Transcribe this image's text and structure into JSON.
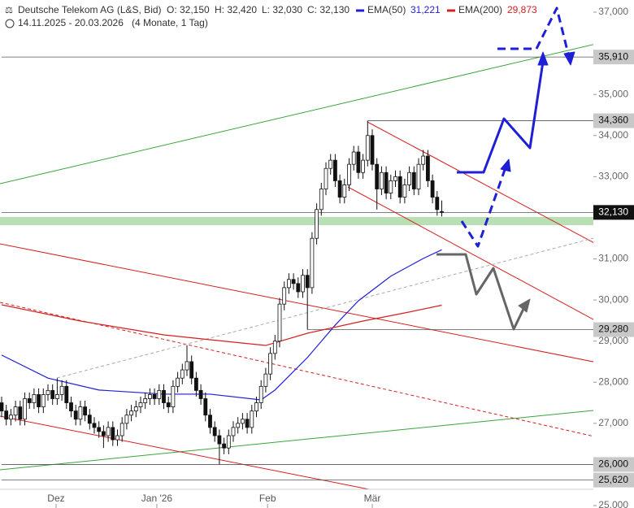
{
  "chart_data": {
    "type": "candlestick",
    "title": "Deutsche Telekom AG (L&S, Bid)",
    "ohlc_labels": [
      "O: 32,150",
      "H: 32,420",
      "L: 32,030",
      "C: 32,130"
    ],
    "period": "14.11.2025 - 20.03.2026",
    "period_note": "(4 Monate, 1 Tag)",
    "up_color": "#ffffff",
    "down_color": "#111111",
    "candles": [
      [
        27500,
        27650,
        27150,
        27300
      ],
      [
        27300,
        27450,
        26950,
        27100
      ],
      [
        27100,
        27350,
        26950,
        27200
      ],
      [
        27200,
        27550,
        27050,
        27400
      ],
      [
        27400,
        27550,
        26950,
        27100
      ],
      [
        27100,
        27750,
        26950,
        27600
      ],
      [
        27600,
        27750,
        27350,
        27500
      ],
      [
        27500,
        27850,
        27350,
        27700
      ],
      [
        27700,
        27850,
        27250,
        27400
      ],
      [
        27400,
        27850,
        27250,
        27700
      ],
      [
        27700,
        27950,
        27550,
        27800
      ],
      [
        27800,
        27950,
        27450,
        27600
      ],
      [
        27600,
        28100,
        27450,
        27700
      ],
      [
        27700,
        28050,
        27550,
        27900
      ],
      [
        27900,
        28050,
        27350,
        27500
      ],
      [
        27500,
        27650,
        27150,
        27300
      ],
      [
        27300,
        27450,
        26950,
        27100
      ],
      [
        27100,
        27550,
        26950,
        27400
      ],
      [
        27400,
        27550,
        27050,
        27200
      ],
      [
        27200,
        27350,
        26850,
        27000
      ],
      [
        27000,
        27150,
        26750,
        26900
      ],
      [
        26900,
        27050,
        26650,
        26800
      ],
      [
        26800,
        26950,
        26400,
        26700
      ],
      [
        26700,
        27050,
        26550,
        26900
      ],
      [
        26900,
        27050,
        26450,
        26600
      ],
      [
        26600,
        26850,
        26450,
        26700
      ],
      [
        26700,
        27150,
        26550,
        27000
      ],
      [
        27000,
        27350,
        26850,
        27200
      ],
      [
        27200,
        27450,
        27050,
        27300
      ],
      [
        27300,
        27550,
        27150,
        27400
      ],
      [
        27400,
        27650,
        27250,
        27500
      ],
      [
        27500,
        27750,
        27350,
        27600
      ],
      [
        27600,
        27850,
        27450,
        27700
      ],
      [
        27700,
        27850,
        27450,
        27600
      ],
      [
        27600,
        27950,
        27450,
        27800
      ],
      [
        27800,
        27950,
        27350,
        27500
      ],
      [
        27500,
        27650,
        27250,
        27400
      ],
      [
        27400,
        28050,
        27250,
        27900
      ],
      [
        27900,
        28250,
        27750,
        28100
      ],
      [
        28100,
        28450,
        27950,
        28300
      ],
      [
        28300,
        28900,
        28150,
        28500
      ],
      [
        28500,
        28650,
        27950,
        28100
      ],
      [
        28100,
        28250,
        27650,
        27800
      ],
      [
        27800,
        27950,
        27450,
        27600
      ],
      [
        27600,
        27750,
        27050,
        27200
      ],
      [
        27200,
        27350,
        26750,
        26900
      ],
      [
        26900,
        27050,
        26550,
        26700
      ],
      [
        26700,
        26850,
        26000,
        26500
      ],
      [
        26500,
        26650,
        26250,
        26400
      ],
      [
        26400,
        26850,
        26250,
        26700
      ],
      [
        26700,
        27050,
        26550,
        26900
      ],
      [
        26900,
        27150,
        26750,
        27000
      ],
      [
        27000,
        27250,
        26850,
        27100
      ],
      [
        27100,
        27250,
        26750,
        26900
      ],
      [
        26900,
        27450,
        26750,
        27300
      ],
      [
        27300,
        27650,
        27150,
        27500
      ],
      [
        27500,
        28050,
        27350,
        27900
      ],
      [
        27900,
        28350,
        27750,
        28200
      ],
      [
        28200,
        28850,
        28050,
        28700
      ],
      [
        28700,
        29150,
        28550,
        29000
      ],
      [
        29000,
        30050,
        28850,
        29900
      ],
      [
        29900,
        30450,
        29750,
        30300
      ],
      [
        30300,
        30650,
        30150,
        30500
      ],
      [
        30500,
        30650,
        30250,
        30400
      ],
      [
        30400,
        30550,
        30050,
        30200
      ],
      [
        30200,
        30750,
        30050,
        30600
      ],
      [
        30600,
        30750,
        29280,
        30300
      ],
      [
        30300,
        31650,
        30150,
        31500
      ],
      [
        31500,
        32350,
        31350,
        32200
      ],
      [
        32200,
        32850,
        32050,
        32700
      ],
      [
        32700,
        33350,
        32550,
        33200
      ],
      [
        33200,
        33550,
        33050,
        33400
      ],
      [
        33400,
        33550,
        32750,
        32900
      ],
      [
        32900,
        33050,
        32350,
        32500
      ],
      [
        32500,
        32950,
        32350,
        32800
      ],
      [
        32800,
        33450,
        32650,
        33300
      ],
      [
        33300,
        33750,
        33150,
        33600
      ],
      [
        33600,
        33750,
        32950,
        33100
      ],
      [
        33100,
        33550,
        32950,
        33400
      ],
      [
        33400,
        34360,
        33250,
        34000
      ],
      [
        34000,
        34150,
        33150,
        33300
      ],
      [
        33300,
        33450,
        32200,
        32700
      ],
      [
        32700,
        33250,
        32550,
        33100
      ],
      [
        33100,
        33250,
        32450,
        32600
      ],
      [
        32600,
        33050,
        32450,
        32900
      ],
      [
        32900,
        33150,
        32750,
        33000
      ],
      [
        33000,
        33150,
        32350,
        32500
      ],
      [
        32500,
        32950,
        32350,
        32800
      ],
      [
        32800,
        33250,
        32650,
        33100
      ],
      [
        33100,
        33250,
        32550,
        32700
      ],
      [
        32700,
        33450,
        32550,
        33300
      ],
      [
        33300,
        33650,
        33150,
        33500
      ],
      [
        33500,
        33650,
        32750,
        32900
      ],
      [
        32900,
        33050,
        32350,
        32500
      ],
      [
        32500,
        32650,
        32050,
        32200
      ],
      [
        32150,
        32420,
        32030,
        32130
      ]
    ],
    "series": [
      {
        "name": "EMA(50)",
        "color": "#1f1fd6",
        "last_label": "31,221",
        "x": [
          0,
          10,
          21,
          35,
          45,
          56,
          59,
          66,
          72,
          77,
          84,
          91,
          95
        ],
        "values": [
          28660,
          28100,
          27810,
          27710,
          27710,
          27570,
          27810,
          28600,
          29390,
          29980,
          30580,
          31010,
          31221
        ]
      },
      {
        "name": "EMA(200)",
        "color": "#d42020",
        "last_label": "29,873",
        "x": [
          0,
          17,
          35,
          45,
          57,
          66,
          78,
          87,
          95
        ],
        "values": [
          29883,
          29488,
          29151,
          29033,
          28894,
          29191,
          29488,
          29685,
          29873
        ]
      }
    ],
    "levels": [
      {
        "value": 35910,
        "label": "35,910",
        "start": 0
      },
      {
        "value": 34360,
        "label": "34,360",
        "start": 79
      },
      {
        "value": 32130,
        "label": "32,130",
        "start": 0,
        "current": true
      },
      {
        "value": 29280,
        "label": "29,280",
        "start": 66
      },
      {
        "value": 26000,
        "label": "26,000",
        "start": 0
      },
      {
        "value": 25620,
        "label": "25,620",
        "start": 0
      }
    ],
    "ylim": [
      25000,
      37000
    ],
    "yticks": [
      {
        "value": 37000,
        "label": "37,000"
      },
      {
        "value": 35000,
        "label": "35,000"
      },
      {
        "value": 34000,
        "label": "34,000"
      },
      {
        "value": 33000,
        "label": "33,000"
      },
      {
        "value": 31000,
        "label": "31,000"
      },
      {
        "value": 30000,
        "label": "30,000"
      },
      {
        "value": 29000,
        "label": "29,000"
      },
      {
        "value": 28000,
        "label": "28,000"
      },
      {
        "value": 27000,
        "label": "27,000"
      },
      {
        "value": 25000,
        "label": "25,000"
      }
    ],
    "xticks": [
      {
        "value": 11.75,
        "label": "Dez"
      },
      {
        "value": 33.5,
        "label": "Jan '26"
      },
      {
        "value": 57.4,
        "label": "Feb"
      },
      {
        "value": 80,
        "label": "Mär"
      }
    ]
  }
}
